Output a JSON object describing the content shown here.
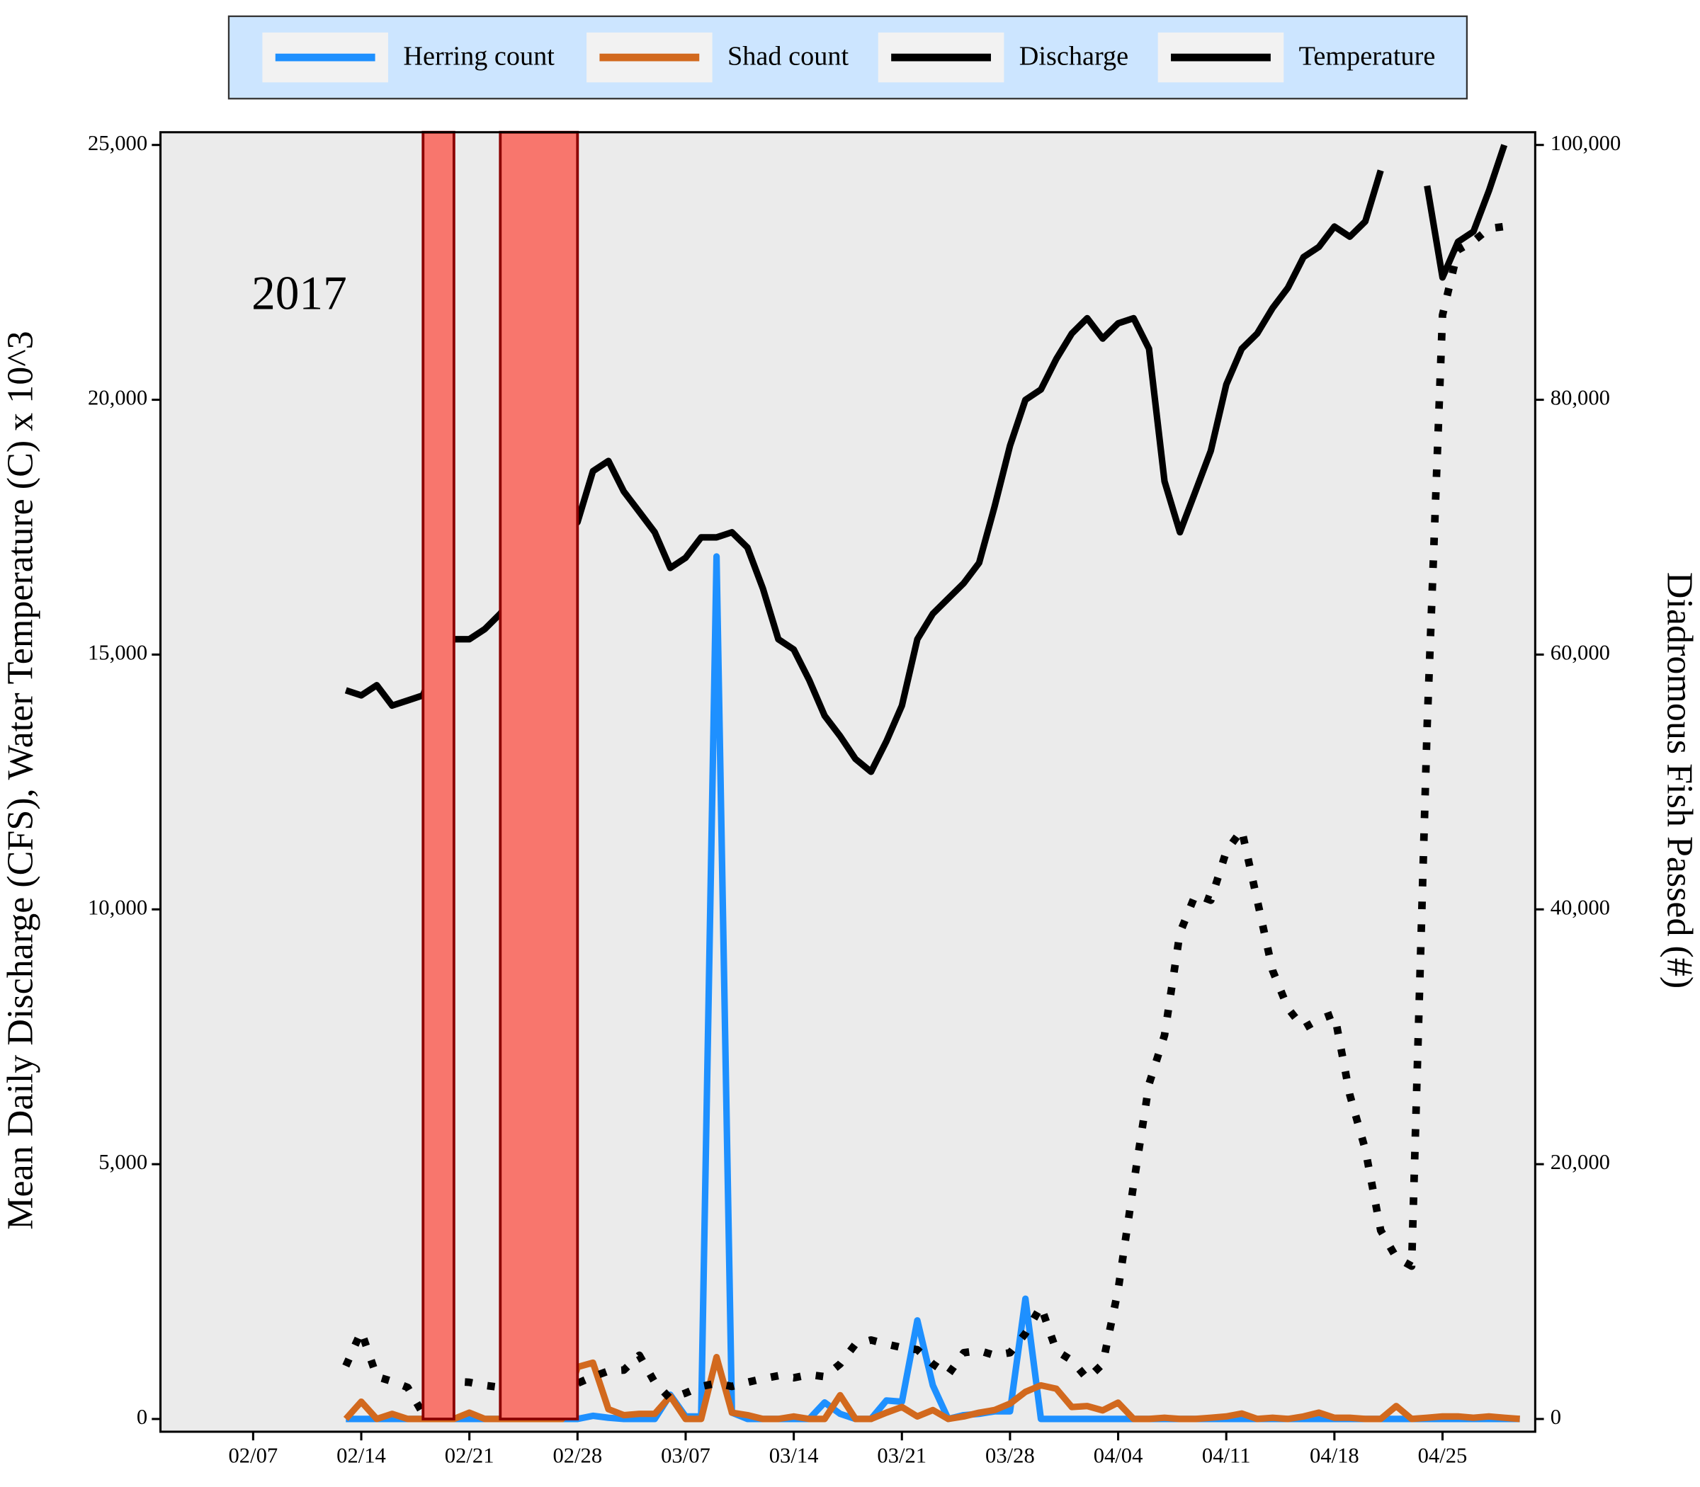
{
  "chart_data": {
    "type": "line",
    "annotation": "2017",
    "y_label": "Mean Daily Discharge (CFS), Water Temperature (C) x 10^3",
    "y2_label": "Diadromous Fish Passed (#)",
    "legend": "top",
    "x": [
      "02/13",
      "02/14",
      "02/15",
      "02/16",
      "02/17",
      "02/18",
      "02/19",
      "02/20",
      "02/21",
      "02/22",
      "02/23",
      "02/24",
      "02/25",
      "02/26",
      "02/27",
      "02/28",
      "03/01",
      "03/02",
      "03/03",
      "03/04",
      "03/05",
      "03/06",
      "03/07",
      "03/08",
      "03/09",
      "03/10",
      "03/11",
      "03/12",
      "03/13",
      "03/14",
      "03/15",
      "03/16",
      "03/17",
      "03/18",
      "03/19",
      "03/20",
      "03/21",
      "03/22",
      "03/23",
      "03/24",
      "03/25",
      "03/26",
      "03/27",
      "03/28",
      "03/29",
      "03/30",
      "03/31",
      "04/01",
      "04/02",
      "04/03",
      "04/04",
      "04/05",
      "04/06",
      "04/07",
      "04/08",
      "04/09",
      "04/10",
      "04/11",
      "04/12",
      "04/13",
      "04/14",
      "04/15",
      "04/16",
      "04/17",
      "04/18",
      "04/19",
      "04/20",
      "04/21",
      "04/22",
      "04/23",
      "04/24",
      "04/25",
      "04/26",
      "04/27",
      "04/28",
      "04/29",
      "04/30"
    ],
    "xlim": [
      "02/01",
      "05/01"
    ],
    "xticks": [
      "02/07",
      "02/14",
      "02/21",
      "02/28",
      "03/07",
      "03/14",
      "03/21",
      "03/28",
      "04/04",
      "04/11",
      "04/18",
      "04/25"
    ],
    "ylim": [
      -250,
      25250
    ],
    "yticks": [
      0,
      {
        "value": 5000,
        "label": "5,000"
      },
      {
        "value": 10000,
        "label": "10,000"
      },
      {
        "value": 15000,
        "label": "15,000"
      },
      {
        "value": 20000,
        "label": "20,000"
      },
      {
        "value": 25000,
        "label": "25,000"
      }
    ],
    "y2lim": [
      -1000,
      101000
    ],
    "y2ticks": [
      0,
      {
        "value": 20000,
        "label": "20,000"
      },
      {
        "value": 40000,
        "label": "40,000"
      },
      {
        "value": 60000,
        "label": "60,000"
      },
      {
        "value": 80000,
        "label": "80,000"
      },
      {
        "value": 100000,
        "label": "100,000"
      }
    ],
    "series": [
      {
        "name": "Herring count",
        "color": "#1e90ff",
        "axis": "y2",
        "style": "solid",
        "values": [
          0,
          0,
          0,
          0,
          0,
          0,
          0,
          0,
          0,
          0,
          0,
          0,
          0,
          0,
          0,
          0,
          250,
          100,
          0,
          0,
          0,
          1900,
          200,
          200,
          67700,
          500,
          0,
          0,
          0,
          0,
          0,
          1300,
          400,
          0,
          0,
          1450,
          1360,
          7740,
          2640,
          0,
          300,
          400,
          600,
          600,
          9440,
          0,
          0,
          0,
          0,
          0,
          0,
          0,
          0,
          0,
          0,
          0,
          0,
          0,
          0,
          0,
          0,
          0,
          0,
          0,
          0,
          0,
          0,
          0,
          0,
          0,
          0,
          0,
          0,
          0,
          0,
          0,
          0
        ]
      },
      {
        "name": "Shad count",
        "color": "#d2691e",
        "axis": "y2",
        "style": "solid",
        "values": [
          0,
          1360,
          0,
          400,
          0,
          0,
          0,
          0,
          500,
          0,
          0,
          0,
          0,
          0,
          0,
          4080,
          4420,
          770,
          300,
          400,
          400,
          1790,
          0,
          0,
          4850,
          500,
          300,
          0,
          0,
          200,
          0,
          0,
          1870,
          0,
          0,
          500,
          940,
          200,
          700,
          0,
          200,
          500,
          700,
          1200,
          2130,
          2640,
          2380,
          940,
          1020,
          680,
          1280,
          0,
          0,
          100,
          0,
          0,
          100,
          200,
          430,
          0,
          100,
          0,
          200,
          500,
          100,
          100,
          0,
          0,
          1020,
          0,
          100,
          200,
          200,
          100,
          200,
          100,
          0
        ]
      },
      {
        "name": "Discharge",
        "color": "#000000",
        "axis": "y",
        "style": "solid",
        "values": [
          14300,
          14200,
          14400,
          14000,
          14100,
          14200,
          15000,
          15300,
          15300,
          15500,
          15800,
          16200,
          16600,
          17000,
          17300,
          17600,
          18600,
          18800,
          18200,
          17800,
          17400,
          16700,
          16900,
          17300,
          17300,
          17400,
          17100,
          16300,
          15300,
          15100,
          14500,
          13800,
          13400,
          12950,
          12700,
          13300,
          14000,
          15300,
          15800,
          16100,
          16400,
          16800,
          17900,
          19100,
          20000,
          20200,
          20800,
          21300,
          21600,
          21200,
          21500,
          21600,
          21000,
          18400,
          17400,
          18200,
          19000,
          20300,
          21000,
          21300,
          21800,
          22200,
          22800,
          23000,
          23400,
          23200,
          23500,
          24500,
          null,
          null,
          24200,
          22400,
          23100,
          23300,
          24100,
          25000,
          null
        ]
      },
      {
        "name": "Temperature",
        "color": "#000000",
        "axis": "y",
        "style": "dotted",
        "values": [
          1040,
          1720,
          830,
          740,
          620,
          100,
          400,
          740,
          720,
          660,
          620,
          650,
          660,
          680,
          690,
          700,
          830,
          940,
          960,
          1250,
          720,
          400,
          510,
          640,
          700,
          640,
          720,
          790,
          850,
          810,
          870,
          830,
          1080,
          1470,
          1550,
          1470,
          1400,
          1360,
          1080,
          870,
          1300,
          1340,
          1250,
          1300,
          1680,
          2210,
          1340,
          1150,
          790,
          1080,
          2530,
          4610,
          6570,
          7530,
          9540,
          10290,
          10180,
          11140,
          11560,
          10180,
          8800,
          8060,
          7670,
          7840,
          7950,
          6360,
          5290,
          3700,
          3170,
          3000,
          13580,
          21660,
          22940,
          23110,
          23360,
          23400,
          null
        ]
      }
    ],
    "shaded_spans": [
      {
        "start": "02/18",
        "end": "02/20"
      },
      {
        "start": "02/23",
        "end": "02/28"
      }
    ],
    "span_color": "#f8766d"
  }
}
